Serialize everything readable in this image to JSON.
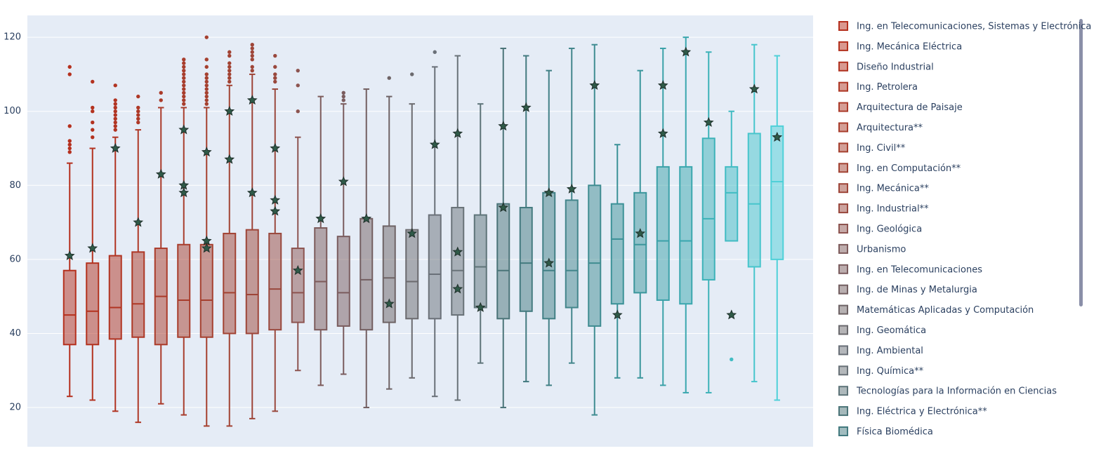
{
  "chart_data": {
    "type": "box",
    "ylim": [
      9.4,
      125.9
    ],
    "yticks": [
      20,
      40,
      60,
      80,
      100,
      120
    ],
    "grid": true,
    "legend": "right",
    "series": [
      {
        "name": "Ing. en Telecomunicaciones, Sistemas y Electrónica",
        "color": "#b5301e",
        "min": 23,
        "q1": 37,
        "median": 45,
        "q3": 57,
        "max": 86,
        "outliers": [
          112,
          110,
          96,
          92,
          91,
          90,
          89
        ],
        "stars": [
          61
        ]
      },
      {
        "name": "Ing. Mecánica Eléctrica",
        "color": "#b3321f",
        "min": 22,
        "q1": 37,
        "median": 46,
        "q3": 59,
        "max": 90,
        "outliers": [
          108,
          101,
          100,
          97,
          95,
          93
        ],
        "stars": [
          63
        ]
      },
      {
        "name": "Diseño Industrial",
        "color": "#b13422",
        "min": 19,
        "q1": 38.5,
        "median": 47,
        "q3": 61,
        "max": 93,
        "outliers": [
          107,
          103,
          102,
          101,
          100,
          99,
          98,
          97,
          96,
          95
        ],
        "stars": [
          90
        ]
      },
      {
        "name": "Ing. Petrolera",
        "color": "#ae3826",
        "min": 16,
        "q1": 39,
        "median": 48,
        "q3": 62,
        "max": 95,
        "outliers": [
          104,
          101,
          100,
          99,
          98,
          97
        ],
        "stars": [
          70
        ]
      },
      {
        "name": "Arquitectura de Paisaje",
        "color": "#ab3b2a",
        "min": 21,
        "q1": 37,
        "median": 50,
        "q3": 63,
        "max": 101,
        "outliers": [
          105,
          103
        ],
        "stars": [
          83
        ]
      },
      {
        "name": "Arquitectura**",
        "color": "#a83d2c",
        "min": 18,
        "q1": 39,
        "median": 49,
        "q3": 64,
        "max": 101,
        "outliers": [
          114,
          113,
          112,
          111,
          110,
          109,
          108,
          107,
          106,
          105,
          104,
          103,
          102
        ],
        "stars": [
          95,
          80,
          78
        ]
      },
      {
        "name": "Ing. Civil**",
        "color": "#a5402f",
        "min": 15,
        "q1": 39,
        "median": 49,
        "q3": 64,
        "max": 101,
        "outliers": [
          120,
          114,
          112,
          110,
          109,
          108,
          107,
          106,
          105,
          104,
          103,
          102
        ],
        "stars": [
          89,
          65,
          63
        ]
      },
      {
        "name": "Ing. en Computación**",
        "color": "#a24333",
        "min": 15,
        "q1": 40,
        "median": 51,
        "q3": 67,
        "max": 107,
        "outliers": [
          116,
          115,
          113,
          112,
          111,
          110,
          109,
          108
        ],
        "stars": [
          100,
          87
        ]
      },
      {
        "name": "Ing. Mecánica**",
        "color": "#9e4538",
        "min": 17,
        "q1": 40,
        "median": 50.5,
        "q3": 68,
        "max": 110,
        "outliers": [
          118,
          117,
          116,
          115,
          114,
          112,
          111
        ],
        "stars": [
          103,
          78
        ]
      },
      {
        "name": "Ing. Industrial**",
        "color": "#99483d",
        "min": 19,
        "q1": 41,
        "median": 52,
        "q3": 67,
        "max": 106,
        "outliers": [
          115,
          112,
          110,
          109,
          108
        ],
        "stars": [
          90,
          76,
          73
        ]
      },
      {
        "name": "Ing. Geológica",
        "color": "#8d5450",
        "min": 30,
        "q1": 43,
        "median": 51,
        "q3": 63,
        "max": 93,
        "outliers": [
          111,
          107,
          100
        ],
        "stars": [
          57
        ]
      },
      {
        "name": "Urbanismo",
        "color": "#7d5b5b",
        "min": 26,
        "q1": 41,
        "median": 54,
        "q3": 68.5,
        "max": 104,
        "outliers": [],
        "stars": [
          71
        ]
      },
      {
        "name": "Ing. en Telecomunicaciones",
        "color": "#7a5c5e",
        "min": 29,
        "q1": 42,
        "median": 51,
        "q3": 66.2,
        "max": 102,
        "outliers": [
          105,
          104,
          103
        ],
        "stars": [
          81
        ]
      },
      {
        "name": "Ing. de Minas y Metalurgia",
        "color": "#735f61",
        "min": 20,
        "q1": 41,
        "median": 54.5,
        "q3": 71,
        "max": 106,
        "outliers": [],
        "stars": [
          71
        ]
      },
      {
        "name": "Matemáticas Aplicadas y Computación",
        "color": "#6e6365",
        "min": 25,
        "q1": 43,
        "median": 55,
        "q3": 69,
        "max": 104,
        "outliers": [
          109
        ],
        "stars": [
          48
        ]
      },
      {
        "name": "Ing. Geomática",
        "color": "#6b6a6e",
        "min": 28,
        "q1": 44,
        "median": 54,
        "q3": 68,
        "max": 102,
        "outliers": [
          110
        ],
        "stars": [
          67
        ]
      },
      {
        "name": "Ing. Ambiental",
        "color": "#6a7078",
        "min": 23,
        "q1": 44,
        "median": 56,
        "q3": 72,
        "max": 112,
        "outliers": [
          116
        ],
        "stars": [
          91
        ]
      },
      {
        "name": "Ing. Química**",
        "color": "#697278",
        "min": 22,
        "q1": 45,
        "median": 57,
        "q3": 74,
        "max": 115,
        "outliers": [],
        "stars": [
          94,
          62,
          52
        ]
      },
      {
        "name": "Tecnologías para la Información en Ciencias",
        "color": "#5e7479",
        "min": 32,
        "q1": 47,
        "median": 58,
        "q3": 72,
        "max": 102,
        "outliers": [],
        "stars": [
          47
        ]
      },
      {
        "name": "Ing. Eléctrica y Electrónica**",
        "color": "#4b7478",
        "min": 20,
        "q1": 44,
        "median": 57,
        "q3": 75,
        "max": 117,
        "outliers": [],
        "stars": [
          96,
          74
        ]
      },
      {
        "name": "Física Biomédica",
        "color": "#437a7f",
        "min": 27,
        "q1": 46,
        "median": 59,
        "q3": 74,
        "max": 115,
        "outliers": [],
        "stars": [
          101
        ]
      },
      {
        "color": "#418085",
        "min": 26,
        "q1": 44,
        "median": 57,
        "q3": 78,
        "max": 111,
        "outliers": [],
        "stars": [
          78,
          59
        ]
      },
      {
        "color": "#43868b",
        "min": 32,
        "q1": 47,
        "median": 57,
        "q3": 76,
        "max": 117,
        "outliers": [],
        "stars": [
          79
        ]
      },
      {
        "color": "#3f8c91",
        "min": 18,
        "q1": 42,
        "median": 59,
        "q3": 80,
        "max": 118,
        "outliers": [],
        "stars": [
          107
        ]
      },
      {
        "color": "#3b9197",
        "min": 28,
        "q1": 48,
        "median": 65.5,
        "q3": 75,
        "max": 91,
        "outliers": [],
        "stars": [
          45
        ]
      },
      {
        "color": "#3b969c",
        "min": 28,
        "q1": 51,
        "median": 64,
        "q3": 78,
        "max": 111,
        "outliers": [],
        "stars": [
          67
        ]
      },
      {
        "color": "#3ba1a8",
        "min": 26,
        "q1": 49,
        "median": 65,
        "q3": 85,
        "max": 117,
        "outliers": [],
        "stars": [
          107,
          94
        ]
      },
      {
        "color": "#3aa7ae",
        "min": 24,
        "q1": 48,
        "median": 65,
        "q3": 85,
        "max": 120,
        "outliers": [],
        "stars": [
          116
        ]
      },
      {
        "color": "#3db2b8",
        "min": 24,
        "q1": 54.5,
        "median": 71,
        "q3": 92.7,
        "max": 116,
        "outliers": [],
        "stars": [
          97
        ]
      },
      {
        "color": "#42bcc3",
        "min": 65,
        "q1": 65,
        "median": 78,
        "q3": 85,
        "max": 100,
        "outliers": [
          33
        ],
        "stars": [
          45
        ]
      },
      {
        "color": "#47c5cc",
        "min": 27,
        "q1": 58,
        "median": 75,
        "q3": 94,
        "max": 118,
        "outliers": [],
        "stars": [
          106
        ]
      },
      {
        "color": "#4fd0d8",
        "min": 22,
        "q1": 60,
        "median": 81,
        "q3": 96,
        "max": 115,
        "outliers": [],
        "stars": [
          93
        ]
      }
    ]
  }
}
